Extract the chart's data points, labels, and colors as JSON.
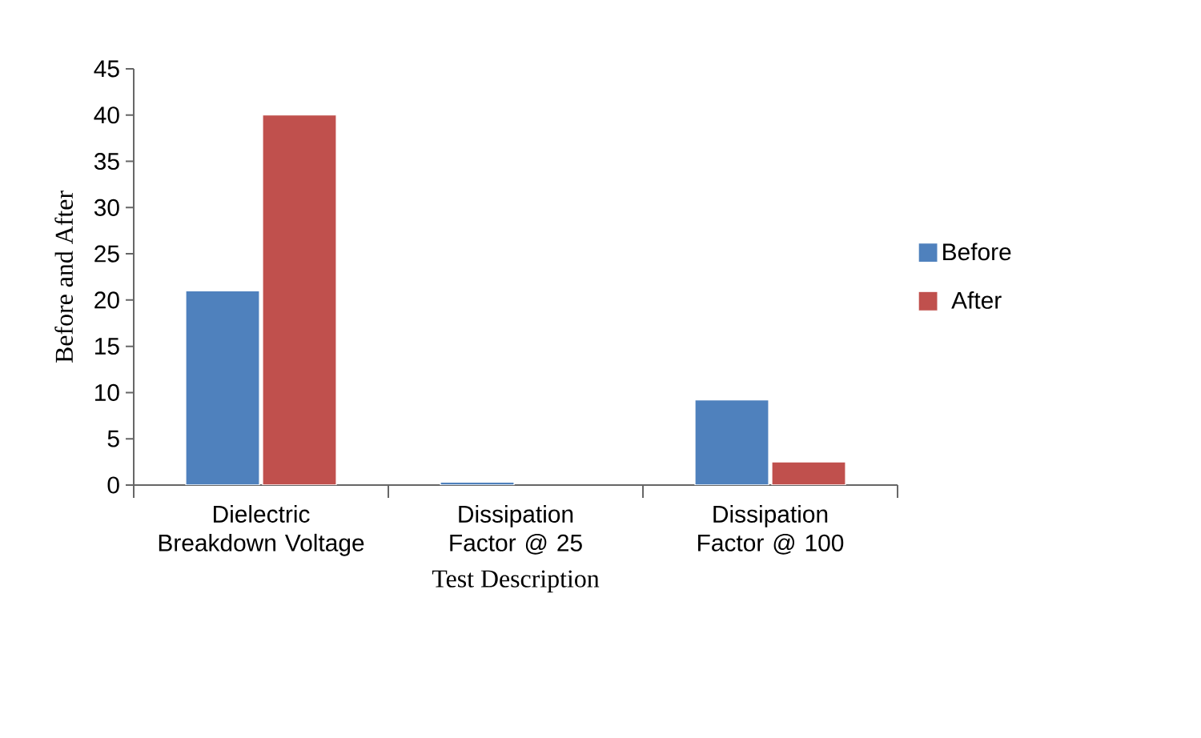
{
  "chart_data": {
    "type": "bar",
    "xlabel": "Test Description",
    "ylabel": "Before and After",
    "categories": [
      "Dielectric Breakdown Voltage",
      "Dissipation Factor @ 25",
      "Dissipation Factor @ 100"
    ],
    "series": [
      {
        "name": "Before",
        "color": "#4f81bd",
        "values": [
          21,
          0.3,
          9.2
        ]
      },
      {
        "name": "After",
        "color": "#c0504d",
        "values": [
          40,
          null,
          2.5
        ]
      }
    ],
    "ylim": [
      0,
      45
    ],
    "yticks": [
      0,
      5,
      10,
      15,
      20,
      25,
      30,
      35,
      40,
      45
    ],
    "grid": false,
    "legend": "right"
  }
}
